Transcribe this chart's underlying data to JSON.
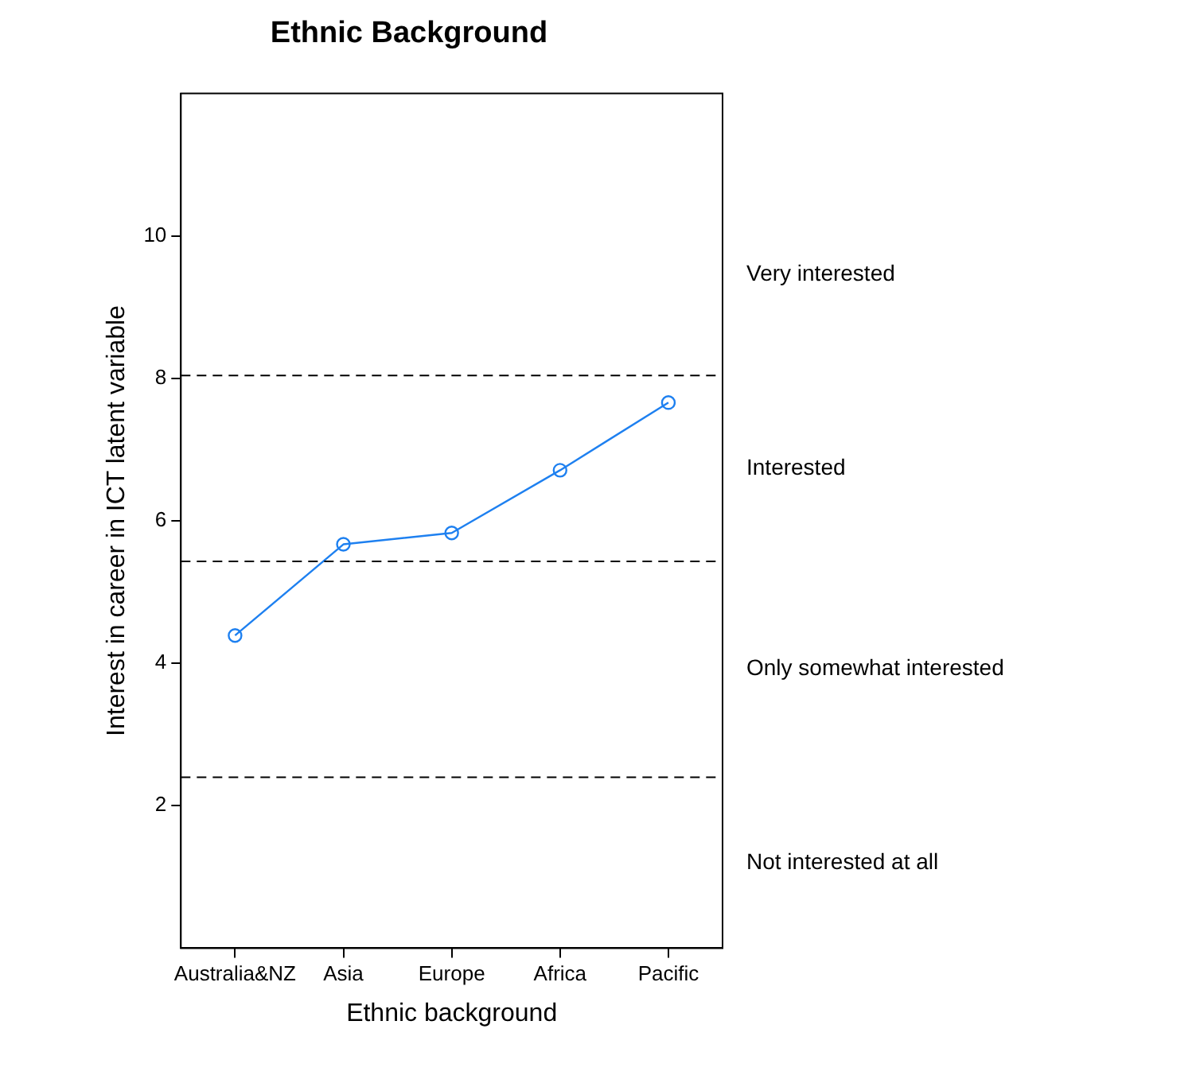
{
  "chart_data": {
    "type": "line",
    "title": "Ethnic Background",
    "xlabel": "Ethnic background",
    "ylabel": "Interest in career in ICT latent variable",
    "categories": [
      "Australia&NZ",
      "Asia",
      "Europe",
      "Africa",
      "Pacific"
    ],
    "series": [
      {
        "color": "#1e80f0",
        "values": [
          4.39,
          5.67,
          5.83,
          6.71,
          7.66
        ]
      }
    ],
    "ylim": [
      0,
      12
    ],
    "yticks": [
      2,
      4,
      6,
      8,
      10
    ],
    "grid": false,
    "legend": false,
    "marker": "circle",
    "line_style": "solid",
    "ref_lines": [
      {
        "axis": "y",
        "value": 8.04,
        "color": "#000000",
        "line_style": "dashed"
      },
      {
        "axis": "y",
        "value": 5.43,
        "color": "#000000",
        "line_style": "dashed"
      },
      {
        "axis": "y",
        "value": 2.4,
        "color": "#000000",
        "line_style": "dashed"
      }
    ],
    "annotations": [
      "Very interested",
      "Interested",
      "Only somewhat interested",
      "Not interested at all"
    ]
  }
}
